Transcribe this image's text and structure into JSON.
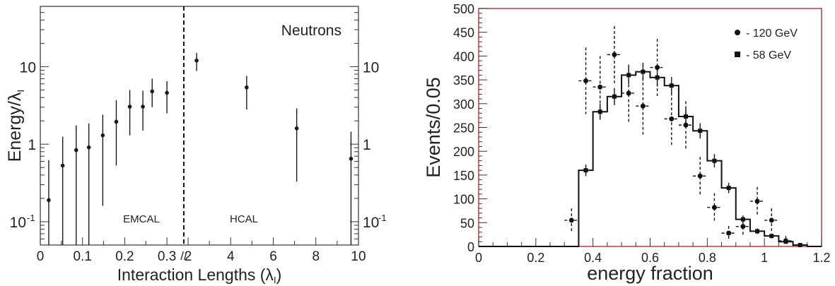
{
  "chart_data": [
    {
      "type": "scatter",
      "title": "",
      "annotation": "Neutrons",
      "xlabel": "Interaction Lengths (λ",
      "xlabel_sub": "I",
      "xlabel_close": ")",
      "ylabel": "Energy/λ",
      "ylabel_sub": "I",
      "y_scale": "log",
      "ylim": [
        0.05,
        60
      ],
      "y_ticks": [
        {
          "value": 0.1,
          "base": "10",
          "exp": "-1"
        },
        {
          "value": 1,
          "label": "1"
        },
        {
          "value": 10,
          "label": "10"
        }
      ],
      "x_break": "//",
      "segments": [
        {
          "name": "EMCAL",
          "xlim": [
            0,
            0.34
          ],
          "ticks": [
            "0",
            "0.1",
            "0.2",
            "0.3"
          ],
          "tick_values": [
            0,
            0.1,
            0.2,
            0.3
          ]
        },
        {
          "name": "HCAL",
          "xlim": [
            1.8,
            10
          ],
          "ticks": [
            "2",
            "4",
            "6",
            "8",
            "10"
          ],
          "tick_values": [
            2,
            4,
            6,
            8,
            10
          ]
        }
      ],
      "region_labels": [
        "EMCAL",
        "HCAL"
      ],
      "series": [
        {
          "points": [
            {
              "segment": 0,
              "x": 0.02,
              "y": 0.19,
              "ylo": 0.05,
              "yhi": 0.62
            },
            {
              "segment": 0,
              "x": 0.053,
              "y": 0.53,
              "ylo": 0.05,
              "yhi": 1.25
            },
            {
              "segment": 0,
              "x": 0.085,
              "y": 0.84,
              "ylo": 0.05,
              "yhi": 1.75
            },
            {
              "segment": 0,
              "x": 0.115,
              "y": 0.91,
              "ylo": 0.05,
              "yhi": 1.85
            },
            {
              "segment": 0,
              "x": 0.148,
              "y": 1.3,
              "ylo": 0.16,
              "yhi": 2.4
            },
            {
              "segment": 0,
              "x": 0.18,
              "y": 1.95,
              "ylo": 0.53,
              "yhi": 3.7
            },
            {
              "segment": 0,
              "x": 0.212,
              "y": 3.05,
              "ylo": 1.3,
              "yhi": 5.0
            },
            {
              "segment": 0,
              "x": 0.243,
              "y": 3.05,
              "ylo": 1.5,
              "yhi": 4.9
            },
            {
              "segment": 0,
              "x": 0.265,
              "y": 4.8,
              "ylo": 3.0,
              "yhi": 7.0
            },
            {
              "segment": 0,
              "x": 0.3,
              "y": 4.6,
              "ylo": 2.5,
              "yhi": 6.5
            },
            {
              "segment": 1,
              "x": 2.4,
              "y": 12.0,
              "ylo": 8.8,
              "yhi": 15.0
            },
            {
              "segment": 1,
              "x": 4.75,
              "y": 5.4,
              "ylo": 2.8,
              "yhi": 7.6
            },
            {
              "segment": 1,
              "x": 7.1,
              "y": 1.6,
              "ylo": 0.33,
              "yhi": 2.9
            },
            {
              "segment": 1,
              "x": 9.65,
              "y": 0.65,
              "ylo": 0.05,
              "yhi": 1.45
            }
          ]
        }
      ],
      "grid": false,
      "color": "#1a1a1a"
    },
    {
      "type": "bar",
      "title": "",
      "xlabel": "energy fraction",
      "ylabel": "Events/0.05",
      "xlim": [
        0,
        1.2
      ],
      "ylim": [
        0,
        500
      ],
      "x_ticks": [
        "0",
        "0.2",
        "0.4",
        "0.6",
        "0.8",
        "1",
        "1.2"
      ],
      "x_tick_values": [
        0,
        0.2,
        0.4,
        0.6,
        0.8,
        1.0,
        1.2
      ],
      "y_ticks": [
        "0",
        "50",
        "100",
        "150",
        "200",
        "250",
        "300",
        "350",
        "400",
        "450",
        "500"
      ],
      "y_tick_values": [
        0,
        50,
        100,
        150,
        200,
        250,
        300,
        350,
        400,
        450,
        500
      ],
      "legend_position": "top-right",
      "grid": false,
      "frame_color": "#a83232",
      "histogram": {
        "bin_edges": [
          0.35,
          0.4,
          0.45,
          0.5,
          0.55,
          0.6,
          0.65,
          0.7,
          0.75,
          0.8,
          0.85,
          0.9,
          0.95,
          1.0,
          1.05,
          1.1,
          1.15
        ],
        "values": [
          160,
          283,
          315,
          360,
          367,
          355,
          338,
          273,
          243,
          180,
          123,
          57,
          32,
          22,
          10,
          3
        ]
      },
      "series": [
        {
          "name": "- 120 GeV",
          "marker": "circle",
          "line_style": "dashed",
          "points": [
            {
              "x": 0.325,
              "y": 55,
              "err": 25
            },
            {
              "x": 0.375,
              "y": 348,
              "err": 70
            },
            {
              "x": 0.425,
              "y": 335,
              "err": 65
            },
            {
              "x": 0.475,
              "y": 403,
              "err": 60
            },
            {
              "x": 0.525,
              "y": 322,
              "err": 60
            },
            {
              "x": 0.575,
              "y": 295,
              "err": 60
            },
            {
              "x": 0.625,
              "y": 376,
              "err": 60
            },
            {
              "x": 0.675,
              "y": 268,
              "err": 55
            },
            {
              "x": 0.725,
              "y": 255,
              "err": 50
            },
            {
              "x": 0.775,
              "y": 148,
              "err": 40
            },
            {
              "x": 0.825,
              "y": 82,
              "err": 30
            },
            {
              "x": 0.875,
              "y": 28,
              "err": 15
            },
            {
              "x": 0.925,
              "y": 42,
              "err": 20
            },
            {
              "x": 0.975,
              "y": 95,
              "err": 30
            },
            {
              "x": 1.025,
              "y": 55,
              "err": 25
            },
            {
              "x": 1.075,
              "y": 12,
              "err": 10
            }
          ]
        },
        {
          "name": "- 58 GeV",
          "marker": "square",
          "line_style": "solid",
          "points": [
            {
              "x": 0.375,
              "y": 160,
              "err": 12
            },
            {
              "x": 0.425,
              "y": 283,
              "err": 17
            },
            {
              "x": 0.475,
              "y": 315,
              "err": 18
            },
            {
              "x": 0.525,
              "y": 360,
              "err": 19
            },
            {
              "x": 0.575,
              "y": 367,
              "err": 19
            },
            {
              "x": 0.625,
              "y": 355,
              "err": 19
            },
            {
              "x": 0.675,
              "y": 338,
              "err": 18
            },
            {
              "x": 0.725,
              "y": 273,
              "err": 17
            },
            {
              "x": 0.775,
              "y": 243,
              "err": 16
            },
            {
              "x": 0.825,
              "y": 180,
              "err": 14
            },
            {
              "x": 0.875,
              "y": 123,
              "err": 11
            },
            {
              "x": 0.925,
              "y": 57,
              "err": 8
            },
            {
              "x": 0.975,
              "y": 32,
              "err": 6
            },
            {
              "x": 1.025,
              "y": 22,
              "err": 5
            },
            {
              "x": 1.075,
              "y": 10,
              "err": 3
            },
            {
              "x": 1.125,
              "y": 3,
              "err": 2
            }
          ]
        }
      ]
    }
  ]
}
